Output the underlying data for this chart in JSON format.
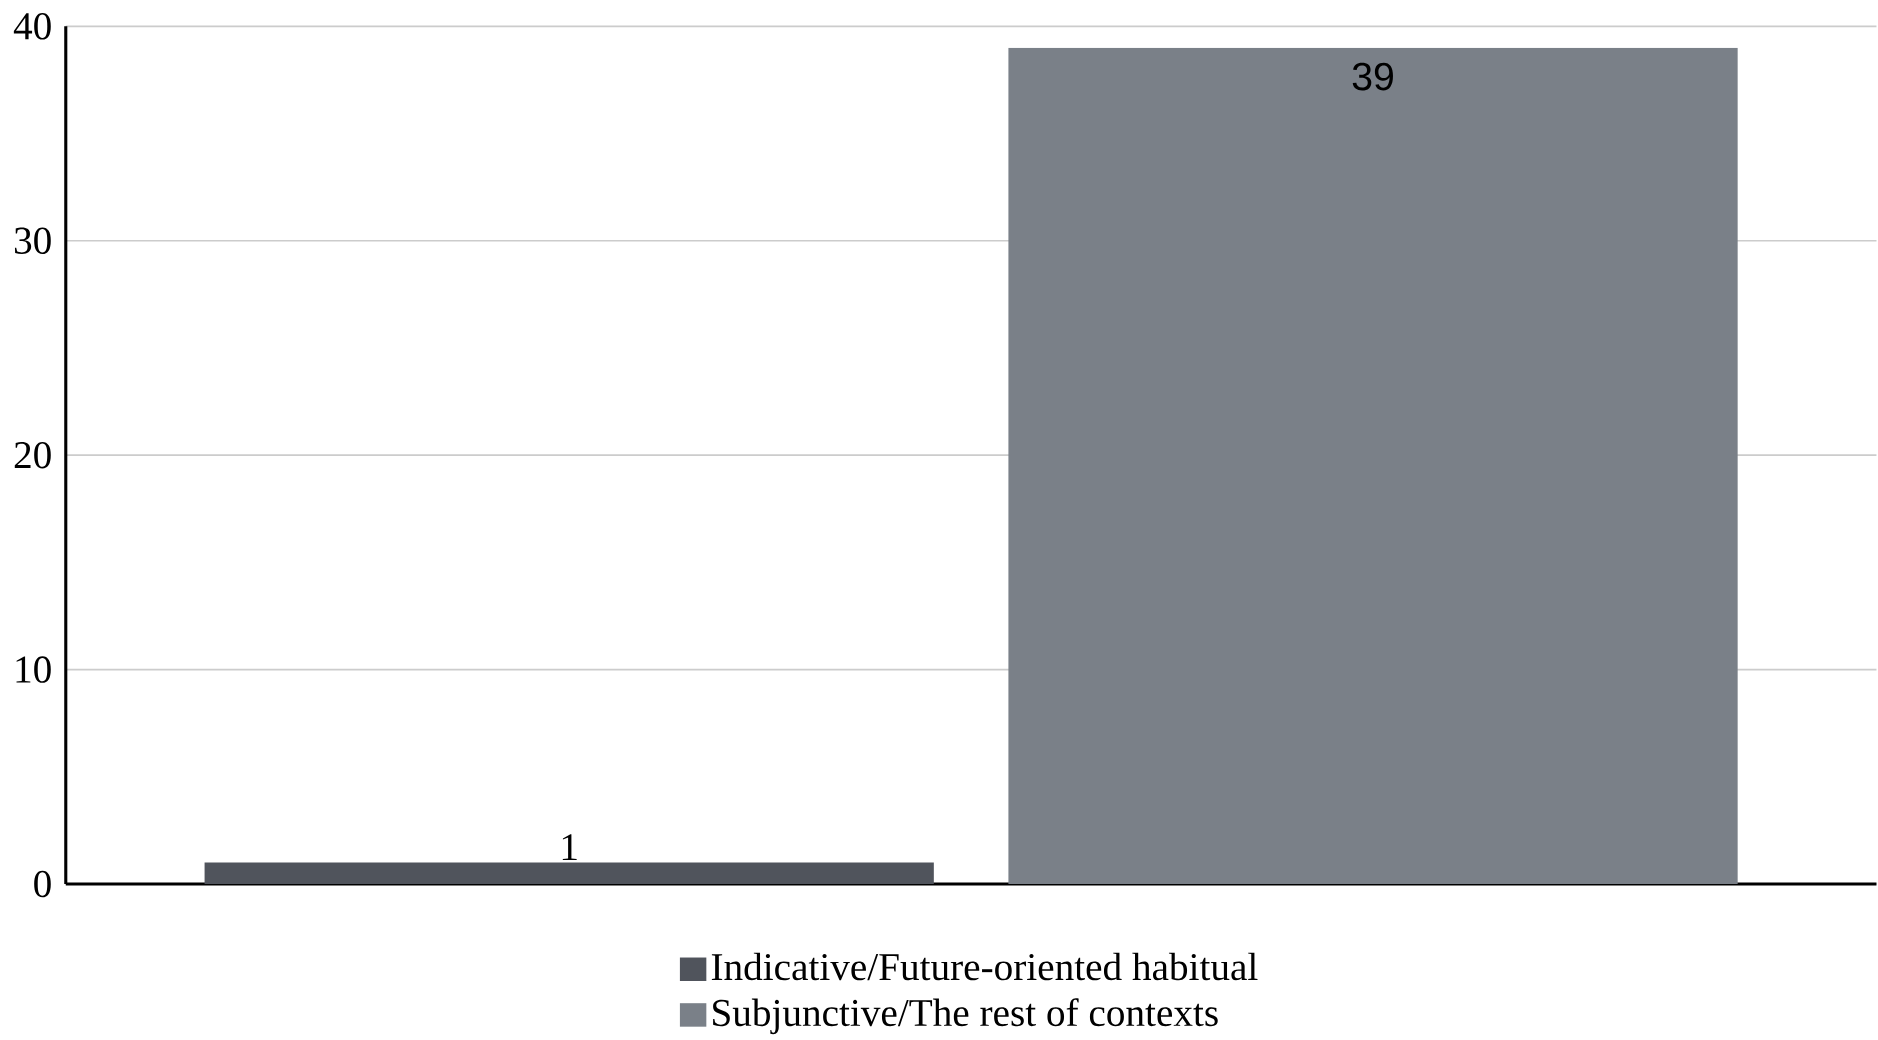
{
  "chart_data": {
    "type": "bar",
    "categories": [
      null
    ],
    "series": [
      {
        "name": "Indicative/Future-oriented habitual",
        "color": "#50545c",
        "values": [
          1
        ]
      },
      {
        "name": "Subjunctive/The rest of contexts",
        "color": "#7a8088",
        "values": [
          39
        ]
      }
    ],
    "ylim": [
      0,
      40
    ],
    "yticks": [
      0,
      10,
      20,
      30,
      40
    ],
    "grid": "y",
    "legend": "bottom",
    "data_labels": true
  }
}
